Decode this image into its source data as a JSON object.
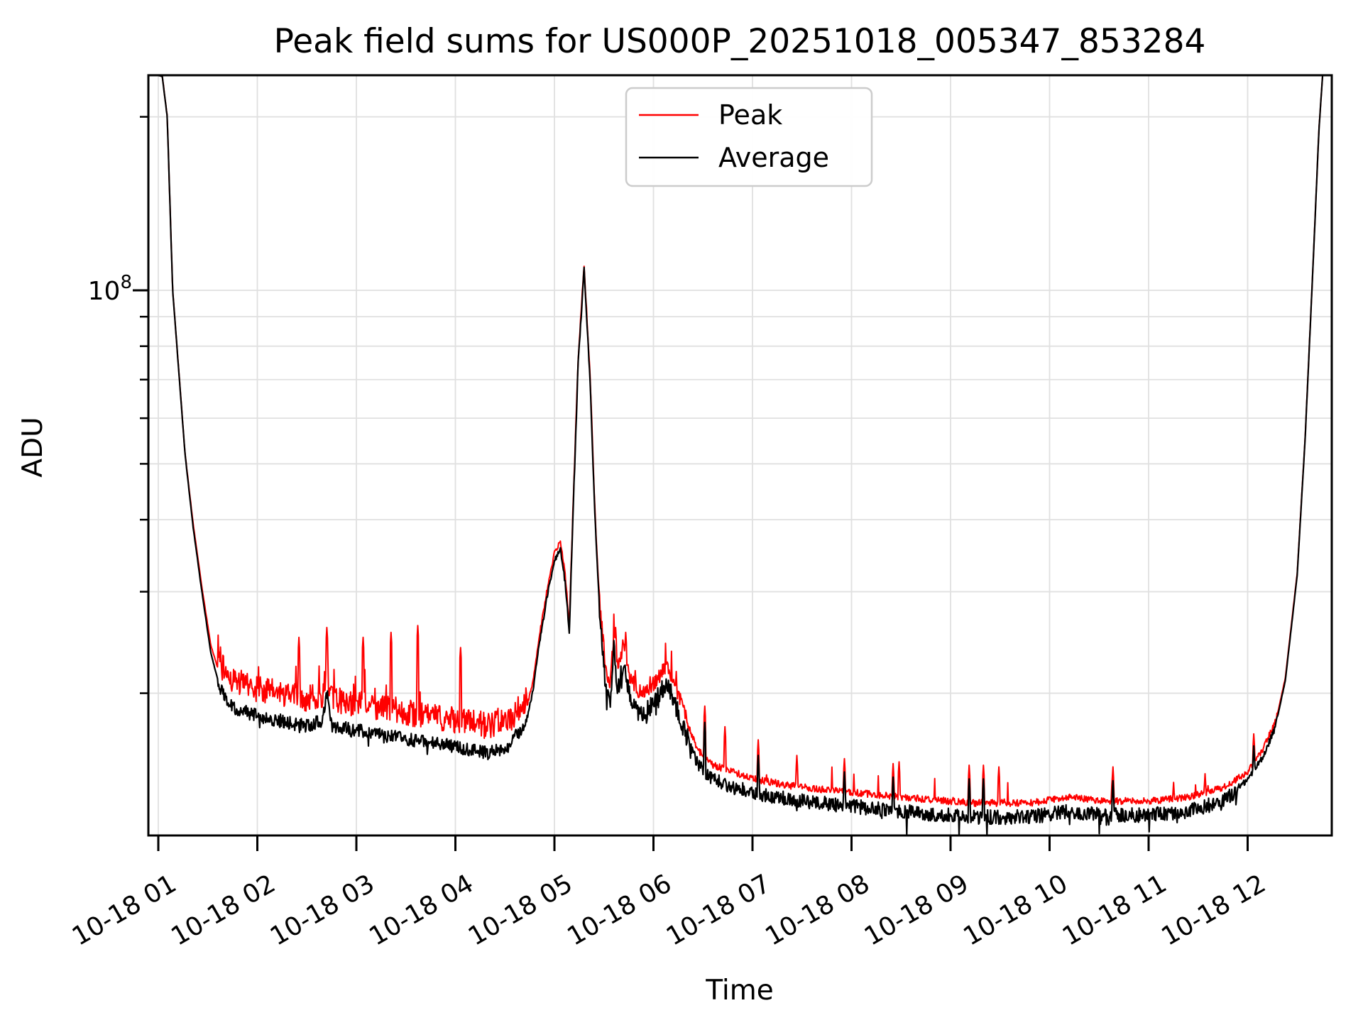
{
  "figure": {
    "background": "#ffffff"
  },
  "chart_data": {
    "type": "line",
    "title": "Peak field sums for US000P_20251018_005347_853284",
    "xlabel": "Time",
    "ylabel": "ADU",
    "grid": "both",
    "grid_color": "#e0e0e0",
    "x_axis": {
      "kind": "datetime-hours",
      "tick_hours": [
        1,
        2,
        3,
        4,
        5,
        6,
        7,
        8,
        9,
        10,
        11,
        12
      ],
      "tick_labels": [
        "10-18 01",
        "10-18 02",
        "10-18 03",
        "10-18 04",
        "10-18 05",
        "10-18 06",
        "10-18 07",
        "10-18 08",
        "10-18 09",
        "10-18 10",
        "10-18 11",
        "10-18 12"
      ],
      "range_hours": [
        0.89,
        12.85
      ],
      "label_rotation_deg": -30
    },
    "y_axis": {
      "scale": "log",
      "unit": "ADU",
      "major_tick": {
        "value": 100000000.0,
        "label": "10^8"
      },
      "minor_tick_values": [
        200000000.0,
        90000000.0,
        80000000.0,
        70000000.0,
        60000000.0,
        50000000.0,
        40000000.0,
        30000000.0,
        20000000.0
      ],
      "range": [
        11300000.0,
        236000000.0
      ]
    },
    "legend": {
      "position": "upper-left-inside",
      "entries": [
        {
          "label": "Peak",
          "color": "#ff0000"
        },
        {
          "label": "Average",
          "color": "#000000"
        }
      ]
    },
    "series": [
      {
        "name": "Peak",
        "color": "#ff0000",
        "line_width": 2.0,
        "seed": 42,
        "anchors": [
          [
            0.89,
            240000000.0
          ],
          [
            1.04,
            235000000.0
          ],
          [
            1.09,
            200000000.0
          ],
          [
            1.145,
            100000000.0
          ],
          [
            1.2,
            75000000.0
          ],
          [
            1.27,
            52000000.0
          ],
          [
            1.35,
            39500000.0
          ],
          [
            1.44,
            30500000.0
          ],
          [
            1.53,
            24200000.0
          ],
          [
            1.62,
            21500000.0
          ],
          [
            1.75,
            20200000.0
          ],
          [
            1.95,
            19600000.0
          ],
          [
            2.2,
            19200000.0
          ],
          [
            2.5,
            18700000.0
          ],
          [
            2.66,
            19100000.0
          ],
          [
            2.7,
            21200000.0
          ],
          [
            2.75,
            18700000.0
          ],
          [
            3.0,
            18400000.0
          ],
          [
            3.4,
            17900000.0
          ],
          [
            3.8,
            17400000.0
          ],
          [
            4.1,
            17100000.0
          ],
          [
            4.35,
            16800000.0
          ],
          [
            4.55,
            17200000.0
          ],
          [
            4.72,
            18800000.0
          ],
          [
            4.78,
            20700000.0
          ],
          [
            4.85,
            25200000.0
          ],
          [
            4.92,
            29700000.0
          ],
          [
            5.0,
            34800000.0
          ],
          [
            5.06,
            36500000.0
          ],
          [
            5.11,
            31800000.0
          ],
          [
            5.15,
            26200000.0
          ],
          [
            5.19,
            42800000.0
          ],
          [
            5.24,
            76000000.0
          ],
          [
            5.3,
            110000000.0
          ],
          [
            5.36,
            71000000.0
          ],
          [
            5.41,
            40800000.0
          ],
          [
            5.46,
            27800000.0
          ],
          [
            5.52,
            21300000.0
          ],
          [
            5.56,
            20400000.0
          ],
          [
            5.6,
            25000000.0
          ],
          [
            5.64,
            21500000.0
          ],
          [
            5.7,
            24000000.0
          ],
          [
            5.76,
            21000000.0
          ],
          [
            5.85,
            19700000.0
          ],
          [
            5.95,
            19900000.0
          ],
          [
            6.05,
            20900000.0
          ],
          [
            6.14,
            22000000.0
          ],
          [
            6.22,
            20200000.0
          ],
          [
            6.32,
            18000000.0
          ],
          [
            6.45,
            15800000.0
          ],
          [
            6.6,
            14900000.0
          ],
          [
            6.8,
            14500000.0
          ],
          [
            7.0,
            14100000.0
          ],
          [
            7.4,
            13700000.0
          ],
          [
            7.9,
            13400000.0
          ],
          [
            8.5,
            13100000.0
          ],
          [
            9.2,
            12800000.0
          ],
          [
            9.8,
            12800000.0
          ],
          [
            10.2,
            13100000.0
          ],
          [
            10.55,
            12900000.0
          ],
          [
            11.0,
            12900000.0
          ],
          [
            11.4,
            13100000.0
          ],
          [
            11.75,
            13600000.0
          ],
          [
            12.0,
            14500000.0
          ],
          [
            12.15,
            15800000.0
          ],
          [
            12.28,
            17700000.0
          ],
          [
            12.38,
            21200000.0
          ],
          [
            12.5,
            32200000.0
          ],
          [
            12.58,
            55200000.0
          ],
          [
            12.66,
            110000000.0
          ],
          [
            12.72,
            190000000.0
          ],
          [
            12.76,
            240000000.0
          ],
          [
            12.85,
            240000000.0
          ]
        ],
        "noise_segments": [
          {
            "t0": 0.89,
            "t1": 1.6,
            "up": 0.004,
            "down": 0.0,
            "spike_p": 0,
            "spike_amp": 0
          },
          {
            "t0": 1.6,
            "t1": 4.72,
            "up": 0.1,
            "down": 0.01,
            "spike_p": 0.06,
            "spike_amp": 0.16
          },
          {
            "t0": 4.72,
            "t1": 5.45,
            "up": 0.015,
            "down": 0.005,
            "spike_p": 0,
            "spike_amp": 0
          },
          {
            "t0": 5.45,
            "t1": 6.35,
            "up": 0.05,
            "down": 0.01,
            "spike_p": 0.05,
            "spike_amp": 0.1
          },
          {
            "t0": 6.35,
            "t1": 11.9,
            "up": 0.022,
            "down": 0.006,
            "spike_p": 0.02,
            "spike_amp": 0.1
          },
          {
            "t0": 11.9,
            "t1": 12.3,
            "up": 0.02,
            "down": 0.005,
            "spike_p": 0,
            "spike_amp": 0
          },
          {
            "t0": 12.3,
            "t1": 12.86,
            "up": 0.003,
            "down": 0.0,
            "spike_p": 0,
            "spike_amp": 0
          }
        ],
        "spikes": [
          [
            2.42,
            25000000.0
          ],
          [
            2.7,
            26000000.0
          ],
          [
            3.07,
            25000000.0
          ],
          [
            3.35,
            25500000.0
          ],
          [
            3.62,
            26200000.0
          ],
          [
            4.05,
            24000000.0
          ],
          [
            5.62,
            26000000.0
          ],
          [
            5.72,
            25500000.0
          ],
          [
            6.52,
            19000000.0
          ],
          [
            6.72,
            17500000.0
          ],
          [
            7.06,
            16600000.0
          ],
          [
            7.45,
            15600000.0
          ],
          [
            7.93,
            15400000.0
          ],
          [
            8.42,
            15100000.0
          ],
          [
            8.48,
            15200000.0
          ],
          [
            9.19,
            15000000.0
          ],
          [
            9.33,
            15000000.0
          ],
          [
            9.49,
            14900000.0
          ],
          [
            10.64,
            14900000.0
          ],
          [
            11.25,
            14000000.0
          ],
          [
            11.57,
            14500000.0
          ],
          [
            12.06,
            17000000.0
          ]
        ]
      },
      {
        "name": "Average",
        "color": "#000000",
        "line_width": 2.2,
        "seed": 1337,
        "anchors": [
          [
            0.89,
            240000000.0
          ],
          [
            1.04,
            235000000.0
          ],
          [
            1.09,
            200000000.0
          ],
          [
            1.145,
            100000000.0
          ],
          [
            1.2,
            75000000.0
          ],
          [
            1.27,
            52000000.0
          ],
          [
            1.35,
            39000000.0
          ],
          [
            1.44,
            30000000.0
          ],
          [
            1.53,
            23500000.0
          ],
          [
            1.62,
            20500000.0
          ],
          [
            1.75,
            19000000.0
          ],
          [
            1.95,
            18400000.0
          ],
          [
            2.2,
            18000000.0
          ],
          [
            2.5,
            17600000.0
          ],
          [
            2.66,
            18000000.0
          ],
          [
            2.7,
            20200000.0
          ],
          [
            2.75,
            17600000.0
          ],
          [
            3.0,
            17300000.0
          ],
          [
            3.4,
            16800000.0
          ],
          [
            3.8,
            16400000.0
          ],
          [
            4.1,
            16100000.0
          ],
          [
            4.35,
            15800000.0
          ],
          [
            4.55,
            16300000.0
          ],
          [
            4.72,
            18000000.0
          ],
          [
            4.78,
            20000000.0
          ],
          [
            4.85,
            24500000.0
          ],
          [
            4.92,
            29000000.0
          ],
          [
            5.0,
            34000000.0
          ],
          [
            5.06,
            35500000.0
          ],
          [
            5.11,
            31000000.0
          ],
          [
            5.15,
            25500000.0
          ],
          [
            5.19,
            42000000.0
          ],
          [
            5.24,
            75000000.0
          ],
          [
            5.3,
            109000000.0
          ],
          [
            5.36,
            70000000.0
          ],
          [
            5.41,
            40000000.0
          ],
          [
            5.46,
            27000000.0
          ],
          [
            5.52,
            20500000.0
          ],
          [
            5.56,
            19500000.0
          ],
          [
            5.6,
            24000000.0
          ],
          [
            5.64,
            20500000.0
          ],
          [
            5.7,
            23000000.0
          ],
          [
            5.76,
            20000000.0
          ],
          [
            5.85,
            18800000.0
          ],
          [
            5.95,
            19000000.0
          ],
          [
            6.05,
            20000000.0
          ],
          [
            6.14,
            21200000.0
          ],
          [
            6.22,
            19300000.0
          ],
          [
            6.32,
            17300000.0
          ],
          [
            6.45,
            15200000.0
          ],
          [
            6.6,
            14400000.0
          ],
          [
            6.8,
            14000000.0
          ],
          [
            7.0,
            13700000.0
          ],
          [
            7.4,
            13300000.0
          ],
          [
            7.9,
            13000000.0
          ],
          [
            8.5,
            12700000.0
          ],
          [
            9.2,
            12400000.0
          ],
          [
            9.8,
            12400000.0
          ],
          [
            10.2,
            12700000.0
          ],
          [
            10.55,
            12500000.0
          ],
          [
            11.0,
            12500000.0
          ],
          [
            11.4,
            12700000.0
          ],
          [
            11.75,
            13200000.0
          ],
          [
            12.0,
            14200000.0
          ],
          [
            12.15,
            15500000.0
          ],
          [
            12.28,
            17500000.0
          ],
          [
            12.38,
            21000000.0
          ],
          [
            12.5,
            32000000.0
          ],
          [
            12.58,
            55000000.0
          ],
          [
            12.66,
            110000000.0
          ],
          [
            12.72,
            190000000.0
          ],
          [
            12.76,
            240000000.0
          ],
          [
            12.85,
            240000000.0
          ]
        ],
        "noise_segments": [
          {
            "t0": 0.89,
            "t1": 1.6,
            "up": 0.002,
            "down": 0.002,
            "spike_p": 0,
            "spike_amp": 0
          },
          {
            "t0": 1.6,
            "t1": 4.72,
            "up": 0.025,
            "down": 0.03,
            "spike_p": 0.03,
            "spike_amp": -0.04
          },
          {
            "t0": 4.72,
            "t1": 5.45,
            "up": 0.01,
            "down": 0.01,
            "spike_p": 0,
            "spike_amp": 0
          },
          {
            "t0": 5.45,
            "t1": 6.35,
            "up": 0.03,
            "down": 0.05,
            "spike_p": 0.04,
            "spike_amp": -0.06
          },
          {
            "t0": 6.35,
            "t1": 11.9,
            "up": 0.012,
            "down": 0.045,
            "spike_p": 0.05,
            "spike_amp": -0.07
          },
          {
            "t0": 11.9,
            "t1": 12.3,
            "up": 0.01,
            "down": 0.015,
            "spike_p": 0,
            "spike_amp": 0
          },
          {
            "t0": 12.3,
            "t1": 12.86,
            "up": 0.002,
            "down": 0.002,
            "spike_p": 0,
            "spike_amp": 0
          }
        ],
        "spikes": [
          [
            6.52,
            17800000.0
          ],
          [
            7.06,
            15600000.0
          ],
          [
            7.93,
            14600000.0
          ],
          [
            8.42,
            14300000.0
          ],
          [
            9.19,
            14200000.0
          ],
          [
            9.33,
            14200000.0
          ],
          [
            10.64,
            14100000.0
          ],
          [
            12.06,
            16200000.0
          ]
        ]
      }
    ]
  }
}
